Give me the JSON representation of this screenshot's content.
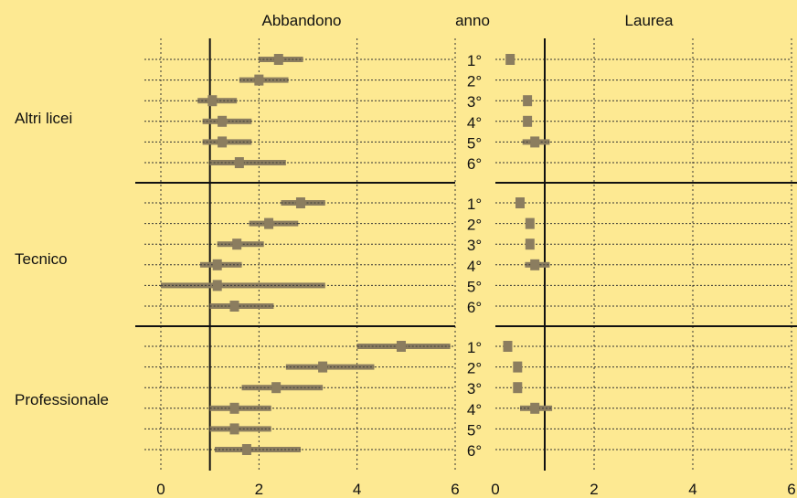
{
  "background_color": "#fde992",
  "chart_data": {
    "type": "forest",
    "headers": {
      "left": "Abbandono",
      "middle": "anno",
      "right": "Laurea"
    },
    "groups": [
      "Altri licei",
      "Tecnico",
      "Professionale"
    ],
    "year_labels": [
      "1°",
      "2°",
      "3°",
      "4°",
      "5°",
      "6°"
    ],
    "x_ticks": [
      "0",
      "2",
      "4",
      "6"
    ],
    "xlim": [
      0,
      6
    ],
    "reference_line": 1,
    "marker_color": "#8b7d5f",
    "abbandono": [
      [
        [
          2.0,
          2.4,
          2.9
        ],
        [
          1.6,
          2.0,
          2.6
        ],
        [
          0.75,
          1.05,
          1.55
        ],
        [
          0.85,
          1.25,
          1.85
        ],
        [
          0.85,
          1.25,
          1.85
        ],
        [
          1.0,
          1.6,
          2.55
        ]
      ],
      [
        [
          2.45,
          2.85,
          3.35
        ],
        [
          1.8,
          2.2,
          2.8
        ],
        [
          1.15,
          1.55,
          2.1
        ],
        [
          0.8,
          1.15,
          1.65
        ],
        [
          0.0,
          1.15,
          3.35
        ],
        [
          1.0,
          1.5,
          2.3
        ]
      ],
      [
        [
          4.0,
          4.9,
          5.9
        ],
        [
          2.55,
          3.3,
          4.35
        ],
        [
          1.65,
          2.35,
          3.3
        ],
        [
          1.0,
          1.5,
          2.25
        ],
        [
          1.0,
          1.5,
          2.25
        ],
        [
          1.1,
          1.75,
          2.85
        ]
      ]
    ],
    "laurea": [
      [
        [
          null,
          0.3,
          null
        ],
        [
          null,
          null,
          null
        ],
        [
          null,
          0.65,
          null
        ],
        [
          null,
          0.65,
          null
        ],
        [
          0.55,
          0.8,
          1.1
        ],
        [
          null,
          null,
          null
        ]
      ],
      [
        [
          null,
          0.5,
          null
        ],
        [
          null,
          0.7,
          null
        ],
        [
          null,
          0.7,
          null
        ],
        [
          0.6,
          0.8,
          1.1
        ],
        [
          null,
          null,
          null
        ],
        [
          null,
          null,
          null
        ]
      ],
      [
        [
          null,
          0.25,
          null
        ],
        [
          null,
          0.45,
          null
        ],
        [
          null,
          0.45,
          null
        ],
        [
          0.5,
          0.8,
          1.15
        ],
        [
          null,
          null,
          null
        ],
        [
          null,
          null,
          null
        ]
      ]
    ]
  }
}
